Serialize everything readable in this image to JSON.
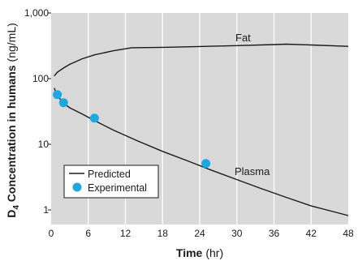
{
  "chart_data": {
    "type": "line",
    "xlabel": {
      "bold": "Time",
      "unit": "(hr)"
    },
    "ylabel": {
      "bold_main": "D",
      "subscript": "4",
      "bold_rest": " Concentration in humans",
      "unit": "(ng/mL)"
    },
    "xlim": [
      0,
      48
    ],
    "ylim": [
      0.6,
      1000
    ],
    "yscale": "log",
    "xticks": [
      0,
      6,
      12,
      18,
      24,
      30,
      36,
      42,
      48
    ],
    "yticks": [
      {
        "value": 1,
        "label": "1"
      },
      {
        "value": 10,
        "label": "10"
      },
      {
        "value": 100,
        "label": "100"
      },
      {
        "value": 1000,
        "label": "1,000"
      }
    ],
    "grid": "vertical",
    "plot_background": "#d9d9d9",
    "series": [
      {
        "name": "Predicted",
        "kind": "line",
        "color": "#1a1a1a",
        "points": [
          [
            0.5,
            110
          ],
          [
            1,
            125
          ],
          [
            2,
            145
          ],
          [
            3,
            165
          ],
          [
            5,
            200
          ],
          [
            7,
            230
          ],
          [
            10,
            265
          ],
          [
            13,
            295
          ],
          [
            18,
            300
          ],
          [
            24,
            308
          ],
          [
            30,
            318
          ],
          [
            36,
            330
          ],
          [
            38,
            335
          ],
          [
            42,
            325
          ],
          [
            48,
            310
          ]
        ]
      },
      {
        "name": "Predicted",
        "kind": "line",
        "color": "#1a1a1a",
        "points": [
          [
            0.5,
            72
          ],
          [
            1,
            55
          ],
          [
            2,
            42
          ],
          [
            3,
            36
          ],
          [
            5,
            29
          ],
          [
            7,
            23
          ],
          [
            10,
            16.5
          ],
          [
            14,
            11.2
          ],
          [
            18,
            7.8
          ],
          [
            22,
            5.6
          ],
          [
            26,
            4.0
          ],
          [
            30,
            2.9
          ],
          [
            34,
            2.1
          ],
          [
            38,
            1.55
          ],
          [
            42,
            1.15
          ],
          [
            46,
            0.92
          ],
          [
            48,
            0.82
          ]
        ]
      },
      {
        "name": "Experimental",
        "kind": "scatter",
        "color": "#1ea7e1",
        "points": [
          [
            1,
            57
          ],
          [
            2,
            43
          ],
          [
            7,
            25
          ],
          [
            25,
            5.1
          ]
        ]
      }
    ],
    "annotations": [
      {
        "text": "Fat",
        "x": 38,
        "y": 460
      },
      {
        "text": "Plasma",
        "x": 38,
        "y": 4.5
      }
    ],
    "legend": {
      "position": "lower-left",
      "entries": [
        {
          "label": "Predicted",
          "marker": "line"
        },
        {
          "label": "Experimental",
          "marker": "dot"
        }
      ]
    }
  }
}
